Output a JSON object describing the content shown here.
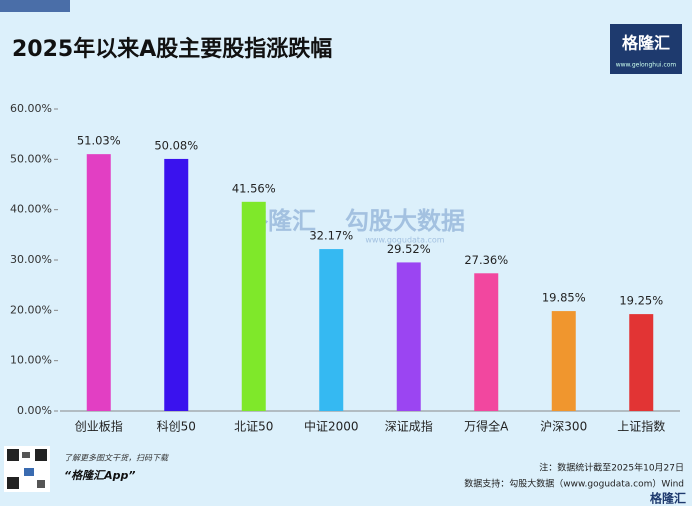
{
  "chart_data": {
    "type": "bar",
    "title": "2025年以来A股主要股指涨跌幅",
    "categories": [
      "创业板指",
      "科创50",
      "北证50",
      "中证2000",
      "深证成指",
      "万得全A",
      "沪深300",
      "上证指数"
    ],
    "values": [
      51.03,
      50.08,
      41.56,
      32.17,
      29.52,
      27.36,
      19.85,
      19.25
    ],
    "value_labels": [
      "51.03%",
      "50.08%",
      "41.56%",
      "32.17%",
      "29.52%",
      "27.36%",
      "19.85%",
      "19.25%"
    ],
    "colors": [
      "#e23fc3",
      "#3a12ee",
      "#7fe82a",
      "#35b9f2",
      "#9b45f2",
      "#f2479f",
      "#f0962e",
      "#e23434"
    ],
    "ylim": [
      0,
      60
    ],
    "yticks": [
      {
        "value": 0,
        "label": "0.00%"
      },
      {
        "value": 10,
        "label": "10.00%"
      },
      {
        "value": 20,
        "label": "20.00%"
      },
      {
        "value": 30,
        "label": "30.00%"
      },
      {
        "value": 40,
        "label": "40.00%"
      },
      {
        "value": 50,
        "label": "50.00%"
      },
      {
        "value": 60,
        "label": "60.00%"
      }
    ],
    "grid": false
  },
  "logo": {
    "name": "格隆汇",
    "url": "www.gelonghui.com"
  },
  "watermark": {
    "left": "格隆汇",
    "right": "勾股大数据",
    "url": "www.gogudata.com"
  },
  "footer": {
    "promo": "了解更多图文干货，扫码下载",
    "app": "“格隆汇App”",
    "note": "注：数据统计截至2025年10月27日",
    "source": "数据支持：勾股大数据（www.gogudata.com）Wind",
    "brand": "格隆汇"
  }
}
